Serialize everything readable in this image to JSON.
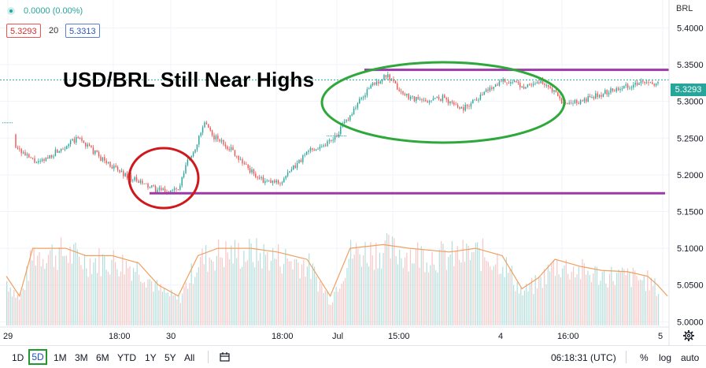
{
  "header": {
    "change": "0.0000 (0.00%)",
    "bid": "5.3293",
    "spread": "20",
    "ask": "5.3313",
    "pair": "BRL"
  },
  "annotation_title": "USD/BRL Still Near Highs",
  "colors": {
    "up": "#26a69a",
    "down": "#ef5350",
    "ma": "#f0a060",
    "resistance": "#9c3ba8",
    "ellipse_green": "#2ea83a",
    "circle_red": "#d0181a",
    "active_border": "#1e9a2f"
  },
  "chart_data": {
    "type": "line",
    "title": "USD/BRL Still Near Highs",
    "ylim": [
      4.995,
      5.438
    ],
    "y_ticks": [
      "5.4000",
      "5.3500",
      "5.3000",
      "5.2500",
      "5.2000",
      "5.1500",
      "5.1000",
      "5.0500",
      "5.0000"
    ],
    "x_ticks": [
      "29",
      "18:00",
      "30",
      "18:00",
      "Jul",
      "15:00",
      "4",
      "16:00",
      "5"
    ],
    "last_price": "5.3293",
    "price_path": [
      [
        0,
        5.255
      ],
      [
        0.03,
        5.225
      ],
      [
        0.05,
        5.215
      ],
      [
        0.08,
        5.235
      ],
      [
        0.11,
        5.25
      ],
      [
        0.14,
        5.225
      ],
      [
        0.17,
        5.205
      ],
      [
        0.2,
        5.19
      ],
      [
        0.225,
        5.18
      ],
      [
        0.238,
        5.178
      ],
      [
        0.262,
        5.18
      ],
      [
        0.272,
        5.215
      ],
      [
        0.285,
        5.235
      ],
      [
        0.3,
        5.27
      ],
      [
        0.31,
        5.255
      ],
      [
        0.34,
        5.235
      ],
      [
        0.37,
        5.205
      ],
      [
        0.39,
        5.19
      ],
      [
        0.415,
        5.19
      ],
      [
        0.44,
        5.215
      ],
      [
        0.46,
        5.235
      ],
      [
        0.48,
        5.24
      ],
      [
        0.5,
        5.255
      ],
      [
        0.515,
        5.275
      ],
      [
        0.53,
        5.295
      ],
      [
        0.55,
        5.32
      ],
      [
        0.575,
        5.335
      ],
      [
        0.6,
        5.31
      ],
      [
        0.63,
        5.3
      ],
      [
        0.66,
        5.305
      ],
      [
        0.69,
        5.29
      ],
      [
        0.72,
        5.31
      ],
      [
        0.75,
        5.33
      ],
      [
        0.78,
        5.32
      ],
      [
        0.81,
        5.328
      ],
      [
        0.83,
        5.31
      ],
      [
        0.845,
        5.295
      ],
      [
        0.87,
        5.3
      ],
      [
        0.9,
        5.31
      ],
      [
        0.93,
        5.32
      ],
      [
        0.96,
        5.325
      ],
      [
        0.98,
        5.322
      ],
      [
        1.0,
        5.33
      ]
    ],
    "resistance_level": 5.343,
    "support_level": 5.175,
    "volume_ma": [
      [
        0,
        5.062
      ],
      [
        0.02,
        5.035
      ],
      [
        0.04,
        5.1
      ],
      [
        0.09,
        5.1
      ],
      [
        0.12,
        5.09
      ],
      [
        0.16,
        5.09
      ],
      [
        0.2,
        5.08
      ],
      [
        0.23,
        5.05
      ],
      [
        0.26,
        5.035
      ],
      [
        0.29,
        5.09
      ],
      [
        0.32,
        5.1
      ],
      [
        0.37,
        5.1
      ],
      [
        0.41,
        5.095
      ],
      [
        0.455,
        5.085
      ],
      [
        0.49,
        5.035
      ],
      [
        0.52,
        5.1
      ],
      [
        0.57,
        5.105
      ],
      [
        0.61,
        5.1
      ],
      [
        0.67,
        5.095
      ],
      [
        0.71,
        5.1
      ],
      [
        0.75,
        5.09
      ],
      [
        0.78,
        5.045
      ],
      [
        0.805,
        5.06
      ],
      [
        0.83,
        5.085
      ],
      [
        0.87,
        5.075
      ],
      [
        0.9,
        5.07
      ],
      [
        0.94,
        5.068
      ],
      [
        0.97,
        5.062
      ],
      [
        0.985,
        5.05
      ],
      [
        1.0,
        5.035
      ]
    ]
  },
  "toolbar": {
    "timeframes": [
      "1D",
      "5D",
      "1M",
      "3M",
      "6M",
      "YTD",
      "1Y",
      "5Y",
      "All"
    ],
    "active_timeframe": "5D",
    "time": "06:18:31 (UTC)",
    "percent": "%",
    "log": "log",
    "auto": "auto"
  }
}
